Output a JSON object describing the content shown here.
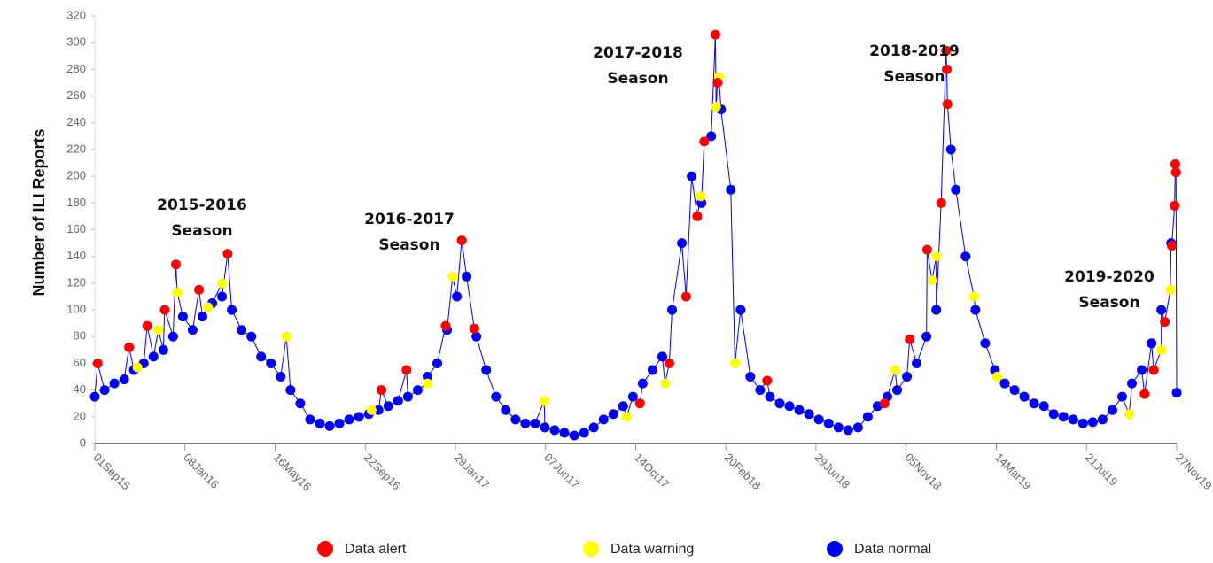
{
  "chart_data": {
    "type": "scatter-line",
    "y_label": "Number of ILI Reports",
    "ylim": [
      0,
      320
    ],
    "yticks": [
      0,
      20,
      40,
      60,
      80,
      100,
      120,
      140,
      160,
      180,
      200,
      220,
      240,
      260,
      280,
      300,
      320
    ],
    "xlim": [
      "2015-09-01",
      "2019-11-27"
    ],
    "xticks": [
      {
        "value": "2015-09-01",
        "label": "01Sep15"
      },
      {
        "value": "2016-01-08",
        "label": "08Jan16"
      },
      {
        "value": "2016-05-16",
        "label": "16May16"
      },
      {
        "value": "2016-09-22",
        "label": "22Sep16"
      },
      {
        "value": "2017-01-29",
        "label": "29Jan17"
      },
      {
        "value": "2017-06-07",
        "label": "07Jun17"
      },
      {
        "value": "2017-10-14",
        "label": "14Oct17"
      },
      {
        "value": "2018-02-20",
        "label": "20Feb18"
      },
      {
        "value": "2018-06-29",
        "label": "29Jun18"
      },
      {
        "value": "2018-11-05",
        "label": "05Nov18"
      },
      {
        "value": "2019-03-14",
        "label": "14Mar19"
      },
      {
        "value": "2019-07-21",
        "label": "21Jul19"
      },
      {
        "value": "2019-11-27",
        "label": "27Nov19"
      }
    ],
    "line_color": "#0000ee",
    "annotations": [
      [
        "2015-2016",
        "Season"
      ],
      [
        "2016-2017",
        "Season"
      ],
      [
        "2017-2018",
        "Season"
      ],
      [
        "2018-2019",
        "Season"
      ],
      [
        "2019-2020",
        "Season"
      ]
    ],
    "series": [
      {
        "name": "Data alert",
        "color": "#ff0000",
        "x": [
          "2015-09-05",
          "2015-10-20",
          "2015-11-15",
          "2015-12-10",
          "2015-12-26",
          "2016-01-28",
          "2016-03-09",
          "2016-10-15",
          "2016-11-20",
          "2017-01-15",
          "2017-02-07",
          "2017-02-25",
          "2017-10-20",
          "2017-12-01",
          "2017-12-25",
          "2018-01-10",
          "2018-01-20",
          "2018-02-05",
          "2018-02-08",
          "2018-04-20",
          "2018-10-05",
          "2018-11-10",
          "2018-12-05",
          "2018-12-25",
          "2019-01-01",
          "2019-01-02",
          "2019-01-03",
          "2019-10-12",
          "2019-10-25",
          "2019-11-10",
          "2019-11-20",
          "2019-11-24",
          "2019-11-25",
          "2019-11-26"
        ],
        "values": [
          60,
          72,
          88,
          100,
          134,
          115,
          142,
          40,
          55,
          88,
          152,
          86,
          30,
          60,
          110,
          170,
          226,
          306,
          270,
          47,
          30,
          78,
          145,
          180,
          294,
          280,
          254,
          37,
          55,
          91,
          148,
          178,
          209,
          203
        ]
      },
      {
        "name": "Data warning",
        "color": "#ffff00",
        "x": [
          "2015-11-01",
          "2015-12-01",
          "2015-12-28",
          "2016-02-10",
          "2016-03-01",
          "2016-06-01",
          "2016-10-01",
          "2016-12-20",
          "2017-01-25",
          "2017-06-05",
          "2017-10-01",
          "2017-11-25",
          "2018-01-15",
          "2018-02-06",
          "2018-02-10",
          "2018-03-05",
          "2018-10-20",
          "2018-12-12",
          "2018-12-18",
          "2019-02-10",
          "2019-03-15",
          "2019-09-20",
          "2019-11-05",
          "2019-11-18"
        ],
        "values": [
          57,
          85,
          113,
          102,
          120,
          80,
          25,
          45,
          125,
          32,
          20,
          45,
          185,
          252,
          274,
          60,
          55,
          122,
          140,
          110,
          50,
          22,
          70,
          115
        ]
      },
      {
        "name": "Data normal",
        "color": "#0000ee",
        "x": [
          "2015-09-01",
          "2015-09-15",
          "2015-09-29",
          "2015-10-13",
          "2015-10-27",
          "2015-11-10",
          "2015-11-24",
          "2015-12-08",
          "2015-12-22",
          "2016-01-05",
          "2016-01-19",
          "2016-02-02",
          "2016-02-16",
          "2016-03-01",
          "2016-03-15",
          "2016-03-29",
          "2016-04-12",
          "2016-04-26",
          "2016-05-10",
          "2016-05-24",
          "2016-06-07",
          "2016-06-21",
          "2016-07-05",
          "2016-07-19",
          "2016-08-02",
          "2016-08-16",
          "2016-08-30",
          "2016-09-13",
          "2016-09-27",
          "2016-10-11",
          "2016-10-25",
          "2016-11-08",
          "2016-11-22",
          "2016-12-06",
          "2016-12-20",
          "2017-01-03",
          "2017-01-17",
          "2017-01-31",
          "2017-02-14",
          "2017-02-28",
          "2017-03-14",
          "2017-03-28",
          "2017-04-11",
          "2017-04-25",
          "2017-05-09",
          "2017-05-23",
          "2017-06-06",
          "2017-06-20",
          "2017-07-04",
          "2017-07-18",
          "2017-08-01",
          "2017-08-15",
          "2017-08-29",
          "2017-09-12",
          "2017-09-26",
          "2017-10-10",
          "2017-10-24",
          "2017-11-07",
          "2017-11-21",
          "2017-12-05",
          "2017-12-19",
          "2018-01-02",
          "2018-01-16",
          "2018-01-30",
          "2018-02-13",
          "2018-02-27",
          "2018-03-13",
          "2018-03-27",
          "2018-04-10",
          "2018-04-24",
          "2018-05-08",
          "2018-05-22",
          "2018-06-05",
          "2018-06-19",
          "2018-07-03",
          "2018-07-17",
          "2018-07-31",
          "2018-08-14",
          "2018-08-28",
          "2018-09-11",
          "2018-09-25",
          "2018-10-09",
          "2018-10-23",
          "2018-11-06",
          "2018-11-20",
          "2018-12-04",
          "2018-12-18",
          "2019-01-08",
          "2019-01-15",
          "2019-01-29",
          "2019-02-12",
          "2019-02-26",
          "2019-03-12",
          "2019-03-26",
          "2019-04-09",
          "2019-04-23",
          "2019-05-07",
          "2019-05-21",
          "2019-06-04",
          "2019-06-18",
          "2019-07-02",
          "2019-07-16",
          "2019-07-30",
          "2019-08-13",
          "2019-08-27",
          "2019-09-10",
          "2019-09-24",
          "2019-10-08",
          "2019-10-22",
          "2019-11-05",
          "2019-11-19",
          "2019-11-27"
        ],
        "values": [
          35,
          40,
          45,
          48,
          55,
          60,
          65,
          70,
          80,
          95,
          85,
          95,
          105,
          110,
          100,
          85,
          80,
          65,
          60,
          50,
          40,
          30,
          18,
          15,
          13,
          15,
          18,
          20,
          22,
          25,
          28,
          32,
          35,
          40,
          50,
          60,
          85,
          110,
          125,
          80,
          55,
          35,
          25,
          18,
          15,
          15,
          12,
          10,
          8,
          6,
          8,
          12,
          18,
          22,
          28,
          35,
          45,
          55,
          65,
          100,
          150,
          200,
          180,
          230,
          250,
          190,
          100,
          50,
          40,
          35,
          30,
          28,
          25,
          22,
          18,
          15,
          12,
          10,
          12,
          20,
          28,
          35,
          40,
          50,
          60,
          80,
          100,
          220,
          190,
          140,
          100,
          75,
          55,
          45,
          40,
          35,
          30,
          28,
          22,
          20,
          18,
          15,
          16,
          18,
          25,
          35,
          45,
          55,
          75,
          100,
          150,
          38
        ]
      }
    ]
  }
}
